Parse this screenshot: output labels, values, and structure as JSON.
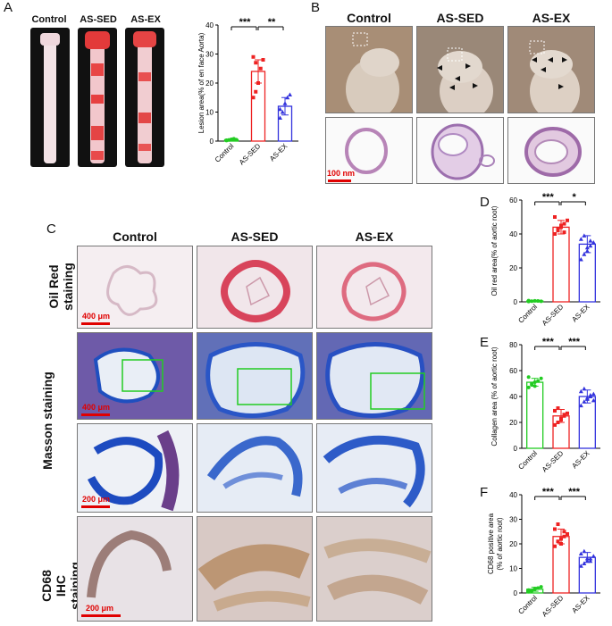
{
  "panel_labels": {
    "A": "A",
    "B": "B",
    "C": "C",
    "D": "D",
    "E": "E",
    "F": "F"
  },
  "groups": [
    "Control",
    "AS-SED",
    "AS-EX"
  ],
  "colors": {
    "control": "#22cc22",
    "sed": "#ee2222",
    "ex": "#3333dd",
    "scale": "#e00000",
    "zoombox": "#22cc22"
  },
  "panel_b": {
    "scale_label": "100 nm"
  },
  "panel_c": {
    "rows": [
      "Oil Red staining",
      "Masson staining",
      "CD68 IHC staining"
    ],
    "scale_oilred": "400 μm",
    "scale_masson": "400 μm",
    "scale_masson_zoom": "200 μm",
    "scale_cd68": "200 μm"
  },
  "chart_data": [
    {
      "id": "A",
      "type": "bar",
      "categories": [
        "Control",
        "AS-SED",
        "AS-EX"
      ],
      "values": [
        0.5,
        24,
        12
      ],
      "errors": [
        0.3,
        4,
        3
      ],
      "points": [
        [
          0.2,
          0.4,
          0.6,
          0.8,
          0.5,
          0.3
        ],
        [
          15,
          17,
          20,
          25,
          28,
          29,
          27
        ],
        [
          8,
          10,
          13,
          15,
          16,
          11
        ]
      ],
      "ylabel": "Lesion area(% of en face Aorta)",
      "ylim": [
        0,
        40
      ],
      "yticks": [
        0,
        10,
        20,
        30,
        40
      ],
      "significance": [
        {
          "pair": [
            0,
            1
          ],
          "label": "***"
        },
        {
          "pair": [
            1,
            2
          ],
          "label": "**"
        }
      ]
    },
    {
      "id": "D",
      "type": "bar",
      "categories": [
        "Control",
        "AS-SED",
        "AS-EX"
      ],
      "values": [
        0.5,
        44,
        34
      ],
      "errors": [
        0.3,
        4,
        5
      ],
      "points": [
        [
          0.2,
          0.4,
          0.6,
          0.5,
          0.3,
          0.7
        ],
        [
          40,
          42,
          44,
          46,
          48,
          50,
          43,
          45,
          41
        ],
        [
          25,
          28,
          30,
          33,
          35,
          37,
          39,
          32,
          36
        ]
      ],
      "ylabel": "Oil red area(% of aortic root)",
      "ylim": [
        0,
        60
      ],
      "yticks": [
        0,
        20,
        40,
        60
      ],
      "significance": [
        {
          "pair": [
            0,
            1
          ],
          "label": "***"
        },
        {
          "pair": [
            1,
            2
          ],
          "label": "*"
        }
      ]
    },
    {
      "id": "E",
      "type": "bar",
      "categories": [
        "Control",
        "AS-SED",
        "AS-EX"
      ],
      "values": [
        51,
        25,
        40
      ],
      "errors": [
        3,
        5,
        5
      ],
      "points": [
        [
          47,
          49,
          51,
          52,
          54,
          55,
          50,
          48
        ],
        [
          18,
          20,
          23,
          25,
          27,
          29,
          31,
          22,
          26
        ],
        [
          33,
          36,
          38,
          40,
          42,
          44,
          46,
          39,
          41,
          37
        ]
      ],
      "ylabel": "Collagen area (% of aortic root)",
      "ylim": [
        0,
        80
      ],
      "yticks": [
        0,
        20,
        40,
        60,
        80
      ],
      "significance": [
        {
          "pair": [
            0,
            1
          ],
          "label": "***"
        },
        {
          "pair": [
            1,
            2
          ],
          "label": "***"
        }
      ]
    },
    {
      "id": "F",
      "type": "bar",
      "categories": [
        "Control",
        "AS-SED",
        "AS-EX"
      ],
      "values": [
        1.5,
        23,
        14.5
      ],
      "errors": [
        0.8,
        3,
        2
      ],
      "points": [
        [
          0.5,
          1,
          1.5,
          2,
          2.5,
          1.2,
          0.8,
          1.8
        ],
        [
          19,
          21,
          22,
          23,
          24,
          26,
          28,
          20,
          25
        ],
        [
          11,
          12,
          13,
          14,
          15,
          16,
          17,
          14,
          13
        ]
      ],
      "ylabel": "CD68 positive area\n(% of aortic root)",
      "ylim": [
        0,
        40
      ],
      "yticks": [
        0,
        10,
        20,
        30,
        40
      ],
      "significance": [
        {
          "pair": [
            0,
            1
          ],
          "label": "***"
        },
        {
          "pair": [
            1,
            2
          ],
          "label": "***"
        }
      ]
    }
  ]
}
